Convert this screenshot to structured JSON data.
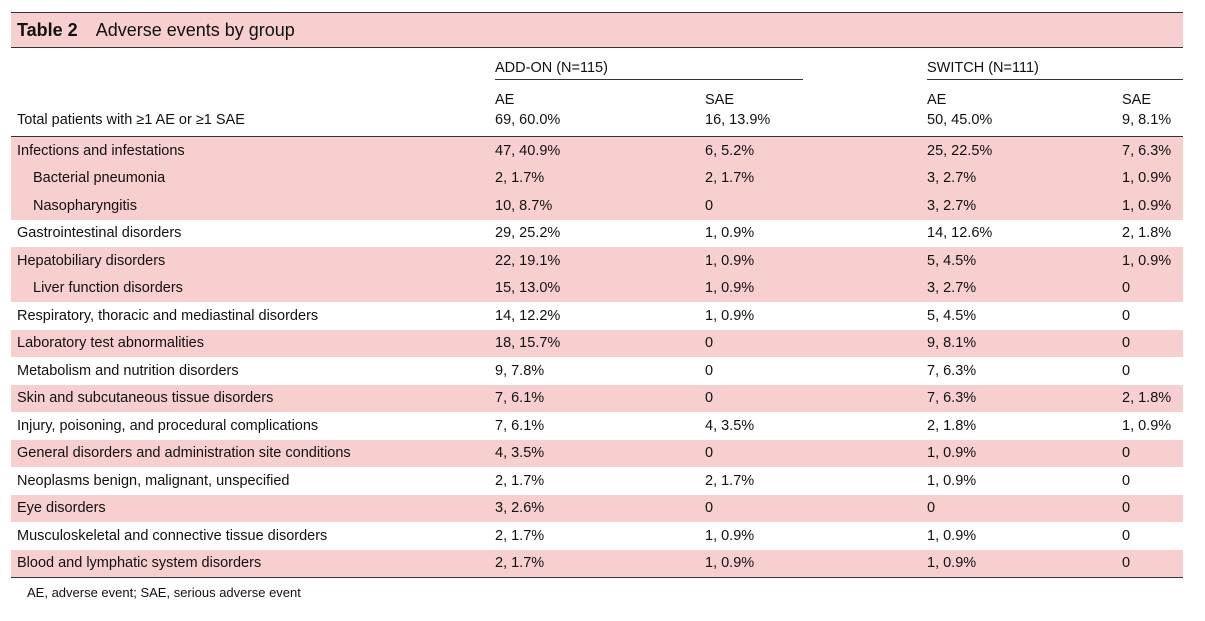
{
  "table": {
    "number": "Table 2",
    "caption": "Adverse events by group",
    "groups": [
      "ADD-ON (N=115)",
      "SWITCH (N=111)"
    ],
    "subheaders": [
      "AE",
      "SAE",
      "AE",
      "SAE"
    ],
    "total": {
      "label": "Total patients with ≥1 AE or ≥1 SAE",
      "values": [
        "69, 60.0%",
        "16, 13.9%",
        "50, 45.0%",
        "9, 8.1%"
      ]
    },
    "rows": [
      {
        "label": "Infections and infestations",
        "indent": false,
        "shaded": true,
        "values": [
          "47, 40.9%",
          "6, 5.2%",
          "25, 22.5%",
          "7, 6.3%"
        ]
      },
      {
        "label": "Bacterial pneumonia",
        "indent": true,
        "shaded": true,
        "values": [
          "2, 1.7%",
          "2, 1.7%",
          "3, 2.7%",
          "1, 0.9%"
        ]
      },
      {
        "label": "Nasopharyngitis",
        "indent": true,
        "shaded": true,
        "values": [
          "10, 8.7%",
          "0",
          "3, 2.7%",
          "1, 0.9%"
        ]
      },
      {
        "label": "Gastrointestinal disorders",
        "indent": false,
        "shaded": false,
        "values": [
          "29, 25.2%",
          "1, 0.9%",
          "14, 12.6%",
          "2, 1.8%"
        ]
      },
      {
        "label": "Hepatobiliary disorders",
        "indent": false,
        "shaded": true,
        "values": [
          "22, 19.1%",
          "1, 0.9%",
          "5, 4.5%",
          "1, 0.9%"
        ]
      },
      {
        "label": "Liver function disorders",
        "indent": true,
        "shaded": true,
        "values": [
          "15, 13.0%",
          "1, 0.9%",
          "3, 2.7%",
          "0"
        ]
      },
      {
        "label": "Respiratory, thoracic and mediastinal disorders",
        "indent": false,
        "shaded": false,
        "values": [
          "14, 12.2%",
          "1, 0.9%",
          "5, 4.5%",
          "0"
        ]
      },
      {
        "label": "Laboratory test abnormalities",
        "indent": false,
        "shaded": true,
        "values": [
          "18, 15.7%",
          "0",
          "9, 8.1%",
          "0"
        ]
      },
      {
        "label": "Metabolism and nutrition disorders",
        "indent": false,
        "shaded": false,
        "values": [
          "9, 7.8%",
          "0",
          "7, 6.3%",
          "0"
        ]
      },
      {
        "label": "Skin and subcutaneous tissue disorders",
        "indent": false,
        "shaded": true,
        "values": [
          "7, 6.1%",
          "0",
          "7, 6.3%",
          "2, 1.8%"
        ]
      },
      {
        "label": "Injury, poisoning, and procedural complications",
        "indent": false,
        "shaded": false,
        "values": [
          "7, 6.1%",
          "4, 3.5%",
          "2, 1.8%",
          "1, 0.9%"
        ]
      },
      {
        "label": "General disorders and administration site conditions",
        "indent": false,
        "shaded": true,
        "values": [
          "4, 3.5%",
          "0",
          "1, 0.9%",
          "0"
        ]
      },
      {
        "label": "Neoplasms benign, malignant, unspecified",
        "indent": false,
        "shaded": false,
        "values": [
          "2, 1.7%",
          "2, 1.7%",
          "1, 0.9%",
          "0"
        ]
      },
      {
        "label": "Eye disorders",
        "indent": false,
        "shaded": true,
        "values": [
          "3, 2.6%",
          "0",
          "0",
          "0"
        ]
      },
      {
        "label": "Musculoskeletal and connective tissue disorders",
        "indent": false,
        "shaded": false,
        "values": [
          "2, 1.7%",
          "1, 0.9%",
          "1, 0.9%",
          "0"
        ]
      },
      {
        "label": "Blood and lymphatic system disorders",
        "indent": false,
        "shaded": true,
        "values": [
          "2, 1.7%",
          "1, 0.9%",
          "1, 0.9%",
          "0"
        ]
      }
    ],
    "footnote": "AE, adverse event; SAE, serious adverse event"
  },
  "colors": {
    "shade": "#f7cfcf",
    "rule": "#333333"
  }
}
